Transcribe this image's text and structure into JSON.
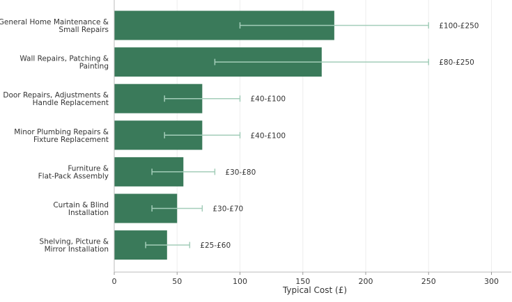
{
  "chart_data": {
    "type": "bar",
    "orientation": "horizontal",
    "xlabel": "Typical Cost (£)",
    "xlim": [
      0,
      315
    ],
    "xticks": [
      0,
      50,
      100,
      150,
      200,
      250,
      300
    ],
    "grid": "vertical",
    "bar_color": "#3a7a5a",
    "errorbar_color": "#a3cdb9",
    "categories": [
      [
        "General Home Maintenance &",
        "Small Repairs"
      ],
      [
        "Wall Repairs, Patching &",
        "Painting"
      ],
      [
        "Door Repairs, Adjustments &",
        "Handle Replacement"
      ],
      [
        "Minor Plumbing Repairs &",
        "Fixture Replacement"
      ],
      [
        "Furniture &",
        "Flat-Pack Assembly"
      ],
      [
        "Curtain & Blind",
        "Installation"
      ],
      [
        "Shelving, Picture &",
        "Mirror Installation"
      ]
    ],
    "values": [
      175,
      165,
      70,
      70,
      55,
      50,
      42
    ],
    "ranges": [
      [
        100,
        250
      ],
      [
        80,
        250
      ],
      [
        40,
        100
      ],
      [
        40,
        100
      ],
      [
        30,
        80
      ],
      [
        30,
        70
      ],
      [
        25,
        60
      ]
    ],
    "range_labels": [
      "£100-£250",
      "£80-£250",
      "£40-£100",
      "£40-£100",
      "£30-£80",
      "£30-£70",
      "£25-£60"
    ]
  }
}
